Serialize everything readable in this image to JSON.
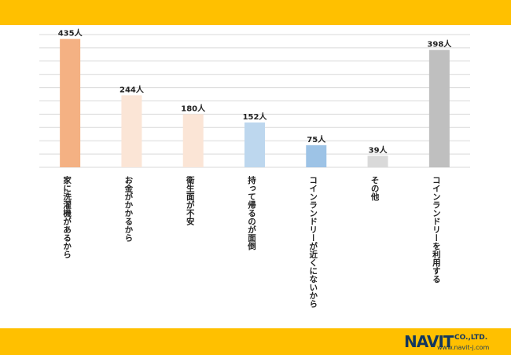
{
  "chart_data": {
    "type": "bar",
    "categories": [
      "家に洗濯機があるから",
      "お金がかかるから",
      "衛生面が不安",
      "持って帰るのが面倒",
      "コインランドリーが近くにないから",
      "その他",
      "コインランドリーを利用する"
    ],
    "values": [
      435,
      244,
      180,
      152,
      75,
      39,
      398
    ],
    "data_labels": [
      "435人",
      "244人",
      "180人",
      "152人",
      "75人",
      "39人",
      "398人"
    ],
    "colors": [
      "#F4B183",
      "#FBE5D6",
      "#FBE5D6",
      "#BDD7EE",
      "#9DC3E6",
      "#D9D9D9",
      "#BFBFBF"
    ],
    "title": "",
    "xlabel": "",
    "ylabel": "",
    "ylim": [
      0,
      450
    ],
    "grid": true,
    "legend": "none"
  },
  "brand": {
    "logo_text": "NAVIT",
    "company_suffix": "CO.,LTD.",
    "website": "www.navit-j.com",
    "band_color": "#FFC000",
    "logo_color": "#13375E"
  }
}
